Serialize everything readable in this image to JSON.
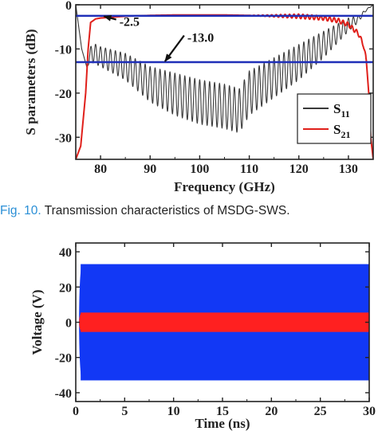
{
  "caption": {
    "figure_label": "Fig. 10.",
    "text": "Transmission characteristics of MSDG-SWS."
  },
  "colors": {
    "s11": "#3a3a3a",
    "s21": "#e0201b",
    "reference_lines": "#1f2fb8",
    "voltage_outer": "#1238f5",
    "voltage_inner": "#ff2020"
  },
  "chart_data": [
    {
      "type": "line",
      "xlabel": "Frequency (GHz)",
      "ylabel": "S parameters (dB)",
      "xlim": [
        75,
        135
      ],
      "ylim": [
        -35,
        0
      ],
      "xticks": [
        80,
        90,
        100,
        110,
        120,
        130
      ],
      "yticks": [
        0,
        -10,
        -20,
        -30
      ],
      "grid": false,
      "legend": {
        "placement": "lower-right",
        "entries": [
          {
            "main": "S",
            "sub": "11",
            "series": "S11"
          },
          {
            "main": "S",
            "sub": "21",
            "series": "S21"
          }
        ]
      },
      "series": [
        {
          "name": "S11",
          "kind": "oscillating-envelope",
          "oscillation_period_ghz": 1.0,
          "upper_envelope": {
            "x": [
              75,
              76.2,
              77.2,
              78.2,
              80,
              85,
              90,
              95,
              100,
              105,
              108,
              110,
              115,
              120,
              125,
              130,
              132,
              133.5,
              135
            ],
            "y": [
              0,
              -10,
              -14,
              -8.5,
              -9.5,
              -11,
              -14,
              -15.5,
              -17,
              -18,
              -19,
              -15,
              -12,
              -9,
              -6,
              -3,
              -2.5,
              -1,
              0
            ]
          },
          "lower_envelope": {
            "x": [
              75,
              76.2,
              77.2,
              78.2,
              80,
              85,
              90,
              95,
              100,
              105,
              108,
              110,
              115,
              120,
              125,
              130,
              132,
              133.5,
              135
            ],
            "y": [
              0,
              -10,
              -14,
              -13,
              -14,
              -17,
              -22,
              -25,
              -27,
              -28,
              -29,
              -25,
              -21,
              -17,
              -12,
              -6,
              -4,
              -1.5,
              0
            ]
          }
        },
        {
          "name": "S21",
          "kind": "line",
          "x": [
            75,
            76,
            77,
            77.5,
            78,
            79,
            80,
            85,
            90,
            95,
            100,
            105,
            110,
            115,
            120,
            125,
            128,
            130,
            132,
            133,
            133.6,
            134.1,
            134.5,
            135
          ],
          "y": [
            -35,
            -32,
            -20,
            -10,
            -4,
            -3.2,
            -3,
            -2.6,
            -2.4,
            -2.3,
            -2.3,
            -2.3,
            -2.4,
            -2.5,
            -2.6,
            -3,
            -3.6,
            -4.5,
            -6.5,
            -9,
            -12.5,
            -20,
            -30,
            -35
          ],
          "ripple_start_ghz": 110,
          "ripple_amplitude_db": 0.5
        }
      ],
      "annotations": [
        {
          "text": "-2.5",
          "x": 83.8,
          "y": -4.8,
          "arrow_to": [
            80.7,
            -2.6
          ]
        },
        {
          "text": "-13.0",
          "x": 97.5,
          "y": -8.4,
          "arrow_to": [
            93,
            -12.8
          ]
        }
      ],
      "reference_lines": [
        {
          "axis": "y",
          "value": -2.5
        },
        {
          "axis": "y",
          "value": -13.0
        }
      ]
    },
    {
      "type": "area",
      "xlabel": "Time (ns)",
      "ylabel": "Voltage (V)",
      "xlim": [
        0,
        30
      ],
      "ylim": [
        -45,
        45
      ],
      "xticks": [
        0,
        5,
        10,
        15,
        20,
        25,
        30
      ],
      "yticks": [
        40,
        20,
        0,
        -20,
        -40
      ],
      "grid": false,
      "series": [
        {
          "kind": "oscillation-band",
          "x_start": 0.5,
          "x_end": 30,
          "amplitude": 33,
          "color_key": "voltage_outer"
        },
        {
          "kind": "oscillation-band",
          "x_start": 0.5,
          "x_end": 30,
          "amplitude": 5.5,
          "color_key": "voltage_inner"
        }
      ]
    }
  ]
}
